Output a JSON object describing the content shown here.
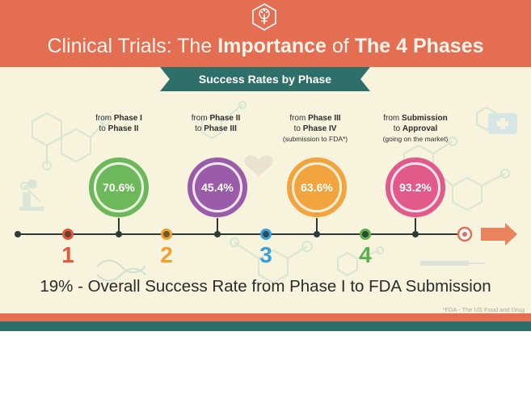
{
  "header": {
    "title_part1": "Clinical Trials: The ",
    "title_bold1": "Importance",
    "title_part2": " of ",
    "title_bold2": "The 4 Phases"
  },
  "ribbon": {
    "label": "Success Rates by Phase"
  },
  "phases": [
    {
      "line1_prefix": "from ",
      "line1_bold": "Phase I",
      "line2_prefix": "to ",
      "line2_bold": "Phase II",
      "line3": "",
      "rate": "70.6%",
      "number": "1"
    },
    {
      "line1_prefix": "from ",
      "line1_bold": "Phase II",
      "line2_prefix": "to ",
      "line2_bold": "Phase III",
      "line3": "",
      "rate": "45.4%",
      "number": "2"
    },
    {
      "line1_prefix": "from ",
      "line1_bold": "Phase III",
      "line2_prefix": "to ",
      "line2_bold": "Phase IV",
      "line3": "(submission to FDA*)",
      "rate": "63.6%",
      "number": "3"
    },
    {
      "line1_prefix": "from ",
      "line1_bold": "Submission",
      "line2_prefix": "to ",
      "line2_bold": "Approval",
      "line3": "(going on the market)",
      "rate": "93.2%",
      "number": "4"
    }
  ],
  "summary": "19% - Overall Success Rate from Phase I to FDA Submission",
  "footnote": "*FDA - The US Food and Drug",
  "colors": {
    "header": "#e46e52",
    "ribbon": "#2f6f6a",
    "background": "#f7f3dc",
    "phase1": "#6cb85a",
    "phase2": "#9a5ba8",
    "phase3": "#f2a53f",
    "phase4": "#e25a8a",
    "num1": "#e05a3a",
    "num2": "#f0a030",
    "num3": "#3aa0d8",
    "num4": "#5ab04a",
    "arrow": "#e46e52"
  }
}
